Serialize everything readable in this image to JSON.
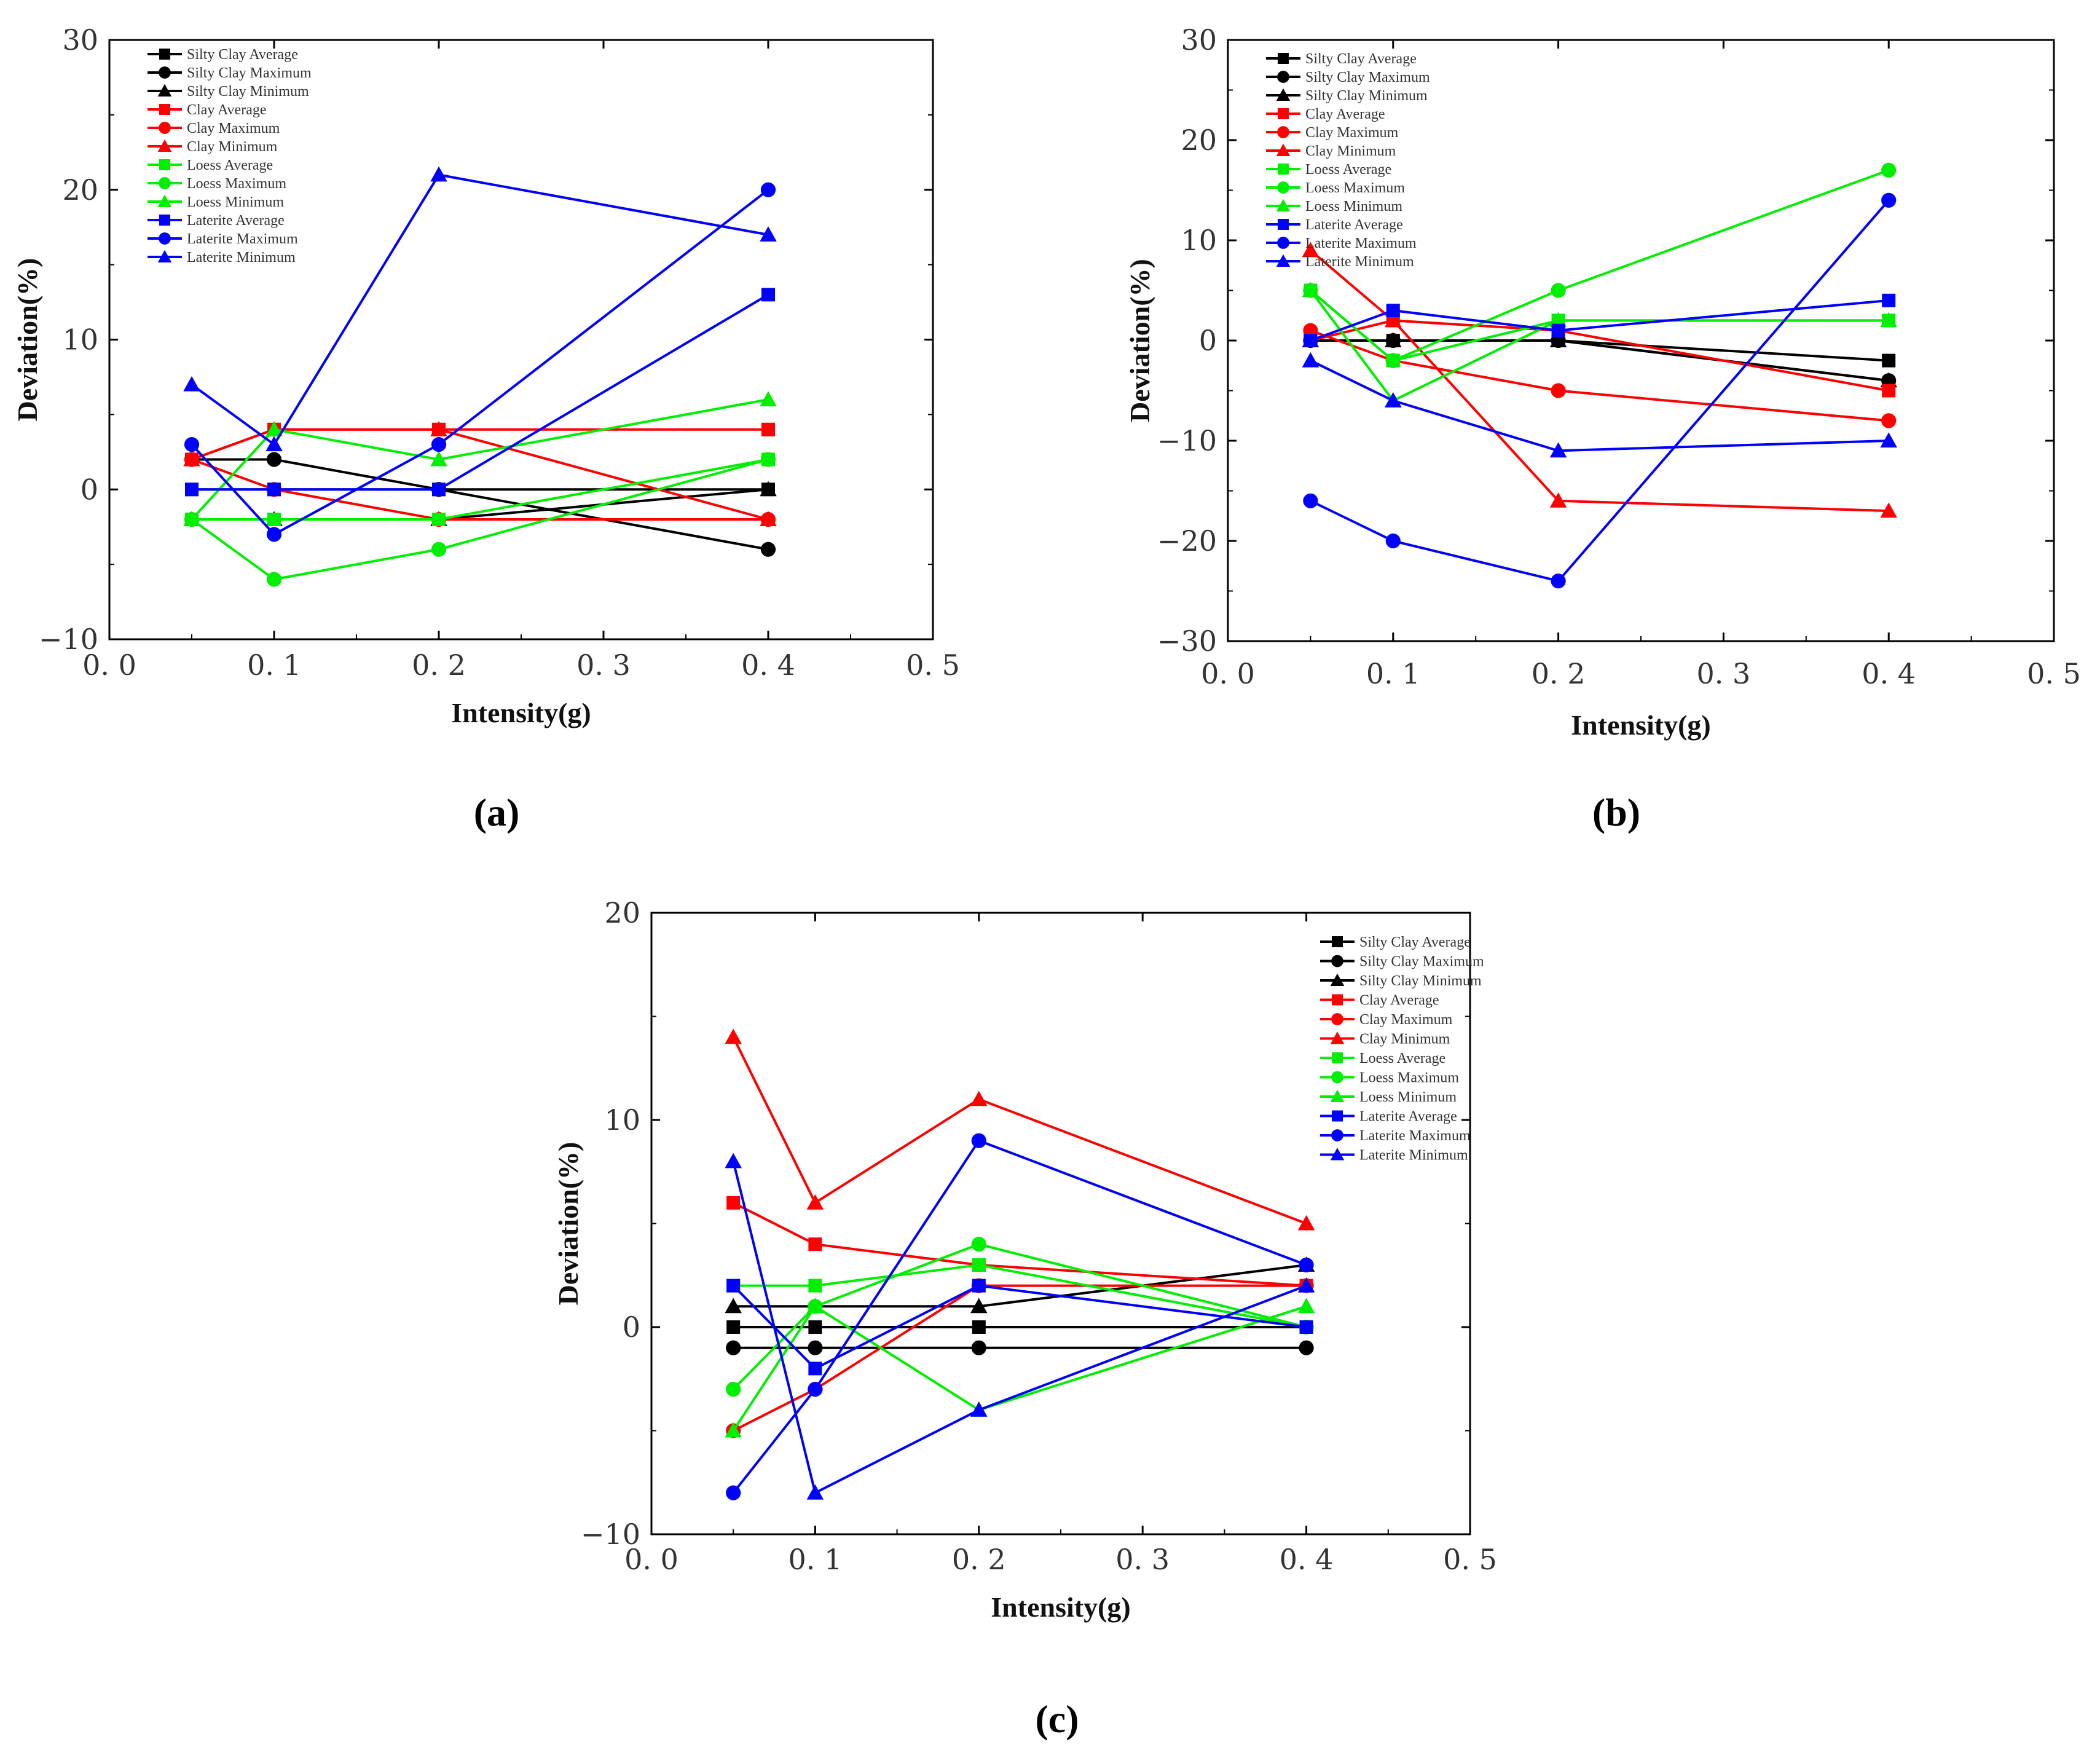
{
  "series_defs": [
    {
      "name": "Silty Clay Average",
      "color": "#000000",
      "marker": "square"
    },
    {
      "name": "Silty Clay Maximum",
      "color": "#000000",
      "marker": "circle"
    },
    {
      "name": "Silty Clay Minimum",
      "color": "#000000",
      "marker": "triangle"
    },
    {
      "name": "Clay Average",
      "color": "#ff0000",
      "marker": "square"
    },
    {
      "name": "Clay Maximum",
      "color": "#ff0000",
      "marker": "circle"
    },
    {
      "name": "Clay Minimum",
      "color": "#ff0000",
      "marker": "triangle"
    },
    {
      "name": "Loess Average",
      "color": "#00ee00",
      "marker": "square"
    },
    {
      "name": "Loess Maximum",
      "color": "#00ee00",
      "marker": "circle"
    },
    {
      "name": "Loess Minimum",
      "color": "#00ee00",
      "marker": "triangle"
    },
    {
      "name": "Laterite Average",
      "color": "#0000ff",
      "marker": "square"
    },
    {
      "name": "Laterite Maximum",
      "color": "#0000ff",
      "marker": "circle"
    },
    {
      "name": "Laterite Minimum",
      "color": "#0000ff",
      "marker": "triangle"
    }
  ],
  "captions": {
    "a": "(a)",
    "b": "(b)",
    "c": "(c)"
  },
  "chart_data": [
    {
      "id": "a",
      "type": "line",
      "xlabel": "Intensity(g)",
      "ylabel": "Deviation(%)",
      "xlim": [
        0.0,
        0.5
      ],
      "ylim": [
        -10,
        30
      ],
      "xticks": [
        0.0,
        0.1,
        0.2,
        0.3,
        0.4,
        0.5
      ],
      "xtick_labels": [
        "0. 0",
        "0. 1",
        "0. 2",
        "0. 3",
        "0. 4",
        "0. 5"
      ],
      "yticks": [
        -10,
        0,
        10,
        20,
        30
      ],
      "ytick_labels": [
        "−10",
        "0",
        "10",
        "20",
        "30"
      ],
      "x": [
        0.05,
        0.1,
        0.2,
        0.4
      ],
      "series": [
        {
          "name": "Silty Clay Average",
          "values": [
            0,
            0,
            0,
            0
          ]
        },
        {
          "name": "Silty Clay Maximum",
          "values": [
            2,
            2,
            0,
            -4
          ]
        },
        {
          "name": "Silty Clay Minimum",
          "values": [
            -2,
            -2,
            -2,
            0
          ]
        },
        {
          "name": "Clay Average",
          "values": [
            2,
            4,
            4,
            4
          ]
        },
        {
          "name": "Clay Maximum",
          "values": [
            2,
            0,
            -2,
            -2
          ]
        },
        {
          "name": "Clay Minimum",
          "values": [
            2,
            4,
            4,
            -2
          ]
        },
        {
          "name": "Loess Average",
          "values": [
            -2,
            -2,
            -2,
            2
          ]
        },
        {
          "name": "Loess Maximum",
          "values": [
            -2,
            -6,
            -4,
            2
          ]
        },
        {
          "name": "Loess Minimum",
          "values": [
            -2,
            4,
            2,
            6
          ]
        },
        {
          "name": "Laterite Average",
          "values": [
            0,
            0,
            0,
            13
          ]
        },
        {
          "name": "Laterite Maximum",
          "values": [
            3,
            -3,
            3,
            20
          ]
        },
        {
          "name": "Laterite Minimum",
          "values": [
            7,
            3,
            21,
            17
          ]
        }
      ]
    },
    {
      "id": "b",
      "type": "line",
      "xlabel": "Intensity(g)",
      "ylabel": "Deviation(%)",
      "xlim": [
        0.0,
        0.5
      ],
      "ylim": [
        -30,
        30
      ],
      "xticks": [
        0.0,
        0.1,
        0.2,
        0.3,
        0.4,
        0.5
      ],
      "xtick_labels": [
        "0. 0",
        "0. 1",
        "0. 2",
        "0. 3",
        "0. 4",
        "0. 5"
      ],
      "yticks": [
        -30,
        -20,
        -10,
        0,
        10,
        20,
        30
      ],
      "ytick_labels": [
        "−30",
        "−20",
        "−10",
        "0",
        "10",
        "20",
        "30"
      ],
      "x": [
        0.05,
        0.1,
        0.2,
        0.4
      ],
      "series": [
        {
          "name": "Silty Clay Average",
          "values": [
            0,
            0,
            0,
            -2
          ]
        },
        {
          "name": "Silty Clay Maximum",
          "values": [
            0,
            0,
            0,
            -4
          ]
        },
        {
          "name": "Silty Clay Minimum",
          "values": [
            0,
            0,
            0,
            -4
          ]
        },
        {
          "name": "Clay Average",
          "values": [
            0,
            2,
            1,
            -5
          ]
        },
        {
          "name": "Clay Maximum",
          "values": [
            1,
            -2,
            -5,
            -8
          ]
        },
        {
          "name": "Clay Minimum",
          "values": [
            9,
            2,
            -16,
            -17
          ]
        },
        {
          "name": "Loess Average",
          "values": [
            5,
            -2,
            2,
            2
          ]
        },
        {
          "name": "Loess Maximum",
          "values": [
            5,
            -2,
            5,
            17
          ]
        },
        {
          "name": "Loess Minimum",
          "values": [
            5,
            -6,
            2,
            2
          ]
        },
        {
          "name": "Laterite Average",
          "values": [
            0,
            3,
            1,
            4
          ]
        },
        {
          "name": "Laterite Maximum",
          "values": [
            -16,
            -20,
            -24,
            14
          ]
        },
        {
          "name": "Laterite Minimum",
          "values": [
            -2,
            -6,
            -11,
            -10
          ]
        }
      ]
    },
    {
      "id": "c",
      "type": "line",
      "xlabel": "Intensity(g)",
      "ylabel": "Deviation(%)",
      "xlim": [
        0.0,
        0.5
      ],
      "ylim": [
        -10,
        20
      ],
      "xticks": [
        0.0,
        0.1,
        0.2,
        0.3,
        0.4,
        0.5
      ],
      "xtick_labels": [
        "0. 0",
        "0. 1",
        "0. 2",
        "0. 3",
        "0. 4",
        "0. 5"
      ],
      "yticks": [
        -10,
        0,
        10,
        20
      ],
      "ytick_labels": [
        "−10",
        "0",
        "10",
        "20"
      ],
      "x": [
        0.05,
        0.1,
        0.2,
        0.4
      ],
      "series": [
        {
          "name": "Silty Clay Average",
          "values": [
            0,
            0,
            0,
            0
          ]
        },
        {
          "name": "Silty Clay Maximum",
          "values": [
            -1,
            -1,
            -1,
            -1
          ]
        },
        {
          "name": "Silty Clay Minimum",
          "values": [
            1,
            1,
            1,
            3
          ]
        },
        {
          "name": "Clay Average",
          "values": [
            6,
            4,
            3,
            2
          ]
        },
        {
          "name": "Clay Maximum",
          "values": [
            -5,
            -3,
            2,
            2
          ]
        },
        {
          "name": "Clay Minimum",
          "values": [
            14,
            6,
            11,
            5
          ]
        },
        {
          "name": "Loess Average",
          "values": [
            2,
            2,
            3,
            0
          ]
        },
        {
          "name": "Loess Maximum",
          "values": [
            -3,
            1,
            4,
            0
          ]
        },
        {
          "name": "Loess Minimum",
          "values": [
            -5,
            1,
            -4,
            1
          ]
        },
        {
          "name": "Laterite Average",
          "values": [
            2,
            -2,
            2,
            0
          ]
        },
        {
          "name": "Laterite Maximum",
          "values": [
            -8,
            -3,
            9,
            3
          ]
        },
        {
          "name": "Laterite Minimum",
          "values": [
            8,
            -8,
            -4,
            2
          ]
        }
      ]
    }
  ]
}
